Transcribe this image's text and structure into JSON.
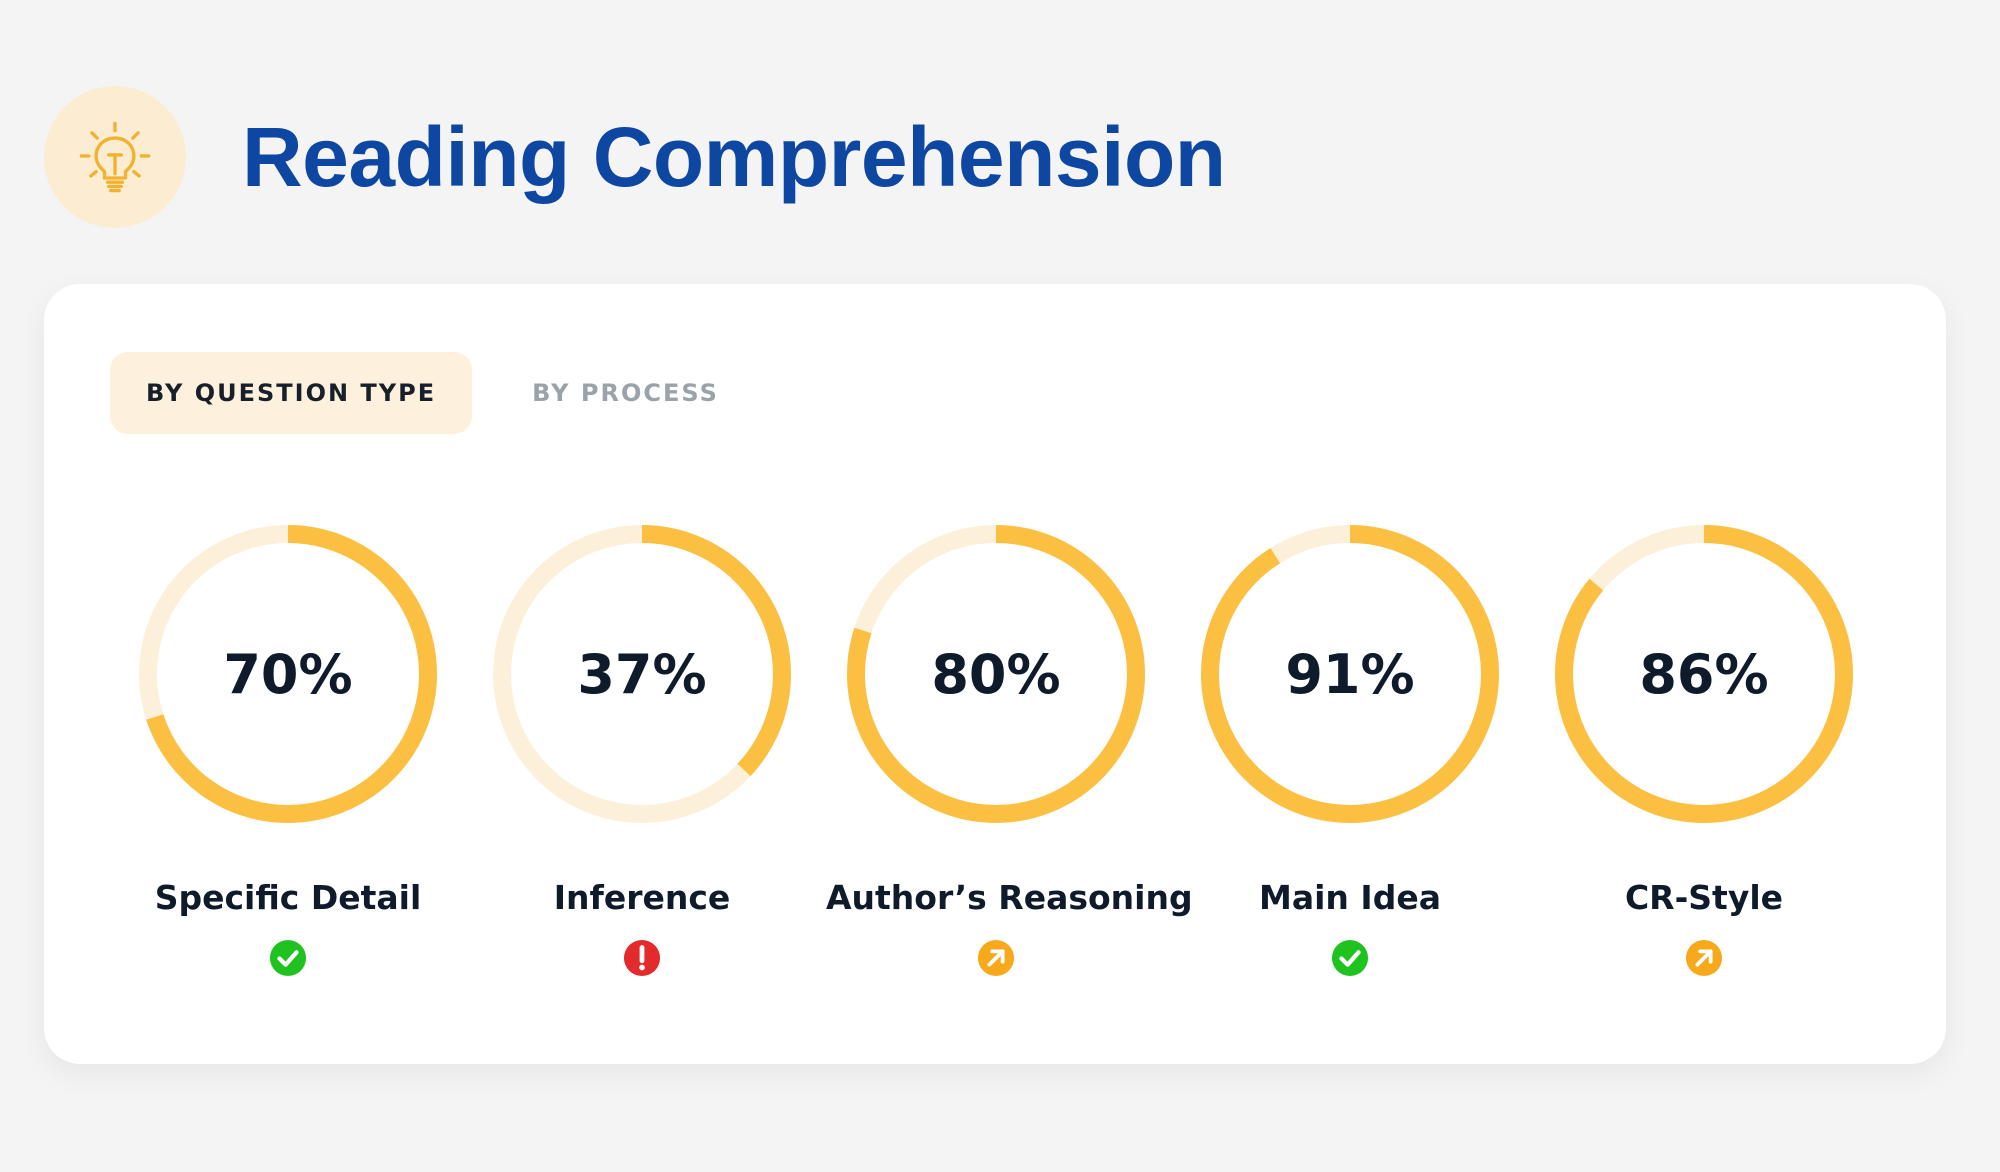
{
  "header": {
    "title": "Reading Comprehension",
    "icon": "lightbulb-icon"
  },
  "tabs": [
    {
      "label": "BY QUESTION TYPE",
      "active": true
    },
    {
      "label": "BY PROCESS",
      "active": false
    }
  ],
  "colors": {
    "accent": "#fbc042",
    "track": "#fdf0da",
    "title": "#0d47a1",
    "success": "#1fc21f",
    "warning": "#f6a91b",
    "danger": "#e32b2b"
  },
  "metrics": [
    {
      "label": "Specific Detail",
      "percent": 70,
      "display": "70%",
      "status": "check-icon"
    },
    {
      "label": "Inference",
      "percent": 37,
      "display": "37%",
      "status": "alert-icon"
    },
    {
      "label": "Author’s Reasoning",
      "percent": 80,
      "display": "80%",
      "status": "arrow-up-right-icon"
    },
    {
      "label": "Main Idea",
      "percent": 91,
      "display": "91%",
      "status": "check-icon"
    },
    {
      "label": "CR-Style",
      "percent": 86,
      "display": "86%",
      "status": "arrow-up-right-icon"
    }
  ]
}
